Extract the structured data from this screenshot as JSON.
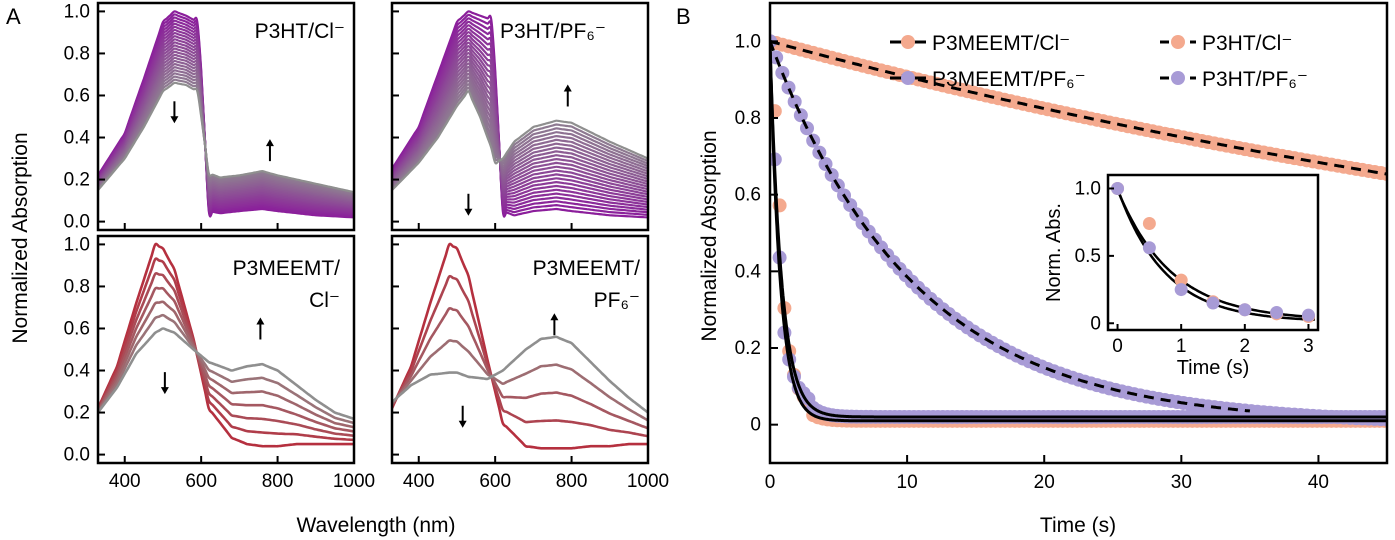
{
  "panel_a_letter": "A",
  "panel_b_letter": "B",
  "panel_a_ylabel": "Normalized Absorption",
  "panel_a_xlabel": "Wavelength (nm)",
  "panel_b_ylabel": "Normalized Absorption",
  "panel_b_xlabel": "Time (s)",
  "colors": {
    "purple": "#8B1E9B",
    "crimson": "#B5303F",
    "grey": "#8F8F8F",
    "salmon": "#F4A98E",
    "lavender": "#A89BD6",
    "black": "#000000"
  },
  "chart_data": [
    {
      "type": "line",
      "panel": "A",
      "label_lines": [
        "P3HT/Cl⁻"
      ],
      "xlim": [
        330,
        1000
      ],
      "ylim": [
        -0.04,
        1.04
      ],
      "x_ticks": [
        400,
        600,
        800,
        1000
      ],
      "y_ticks": [
        0.0,
        0.2,
        0.4,
        0.6,
        0.8,
        1.0
      ],
      "x_ticklabels": [],
      "y_ticklabels": [
        "0.0",
        "0.2",
        "0.4",
        "0.6",
        "0.8",
        "1.0"
      ],
      "series_initial": {
        "x": [
          330,
          400,
          450,
          500,
          530,
          560,
          590,
          600,
          620,
          650,
          700,
          760,
          800,
          900,
          1000
        ],
        "y": [
          0.22,
          0.42,
          0.68,
          0.95,
          1.0,
          0.98,
          0.95,
          0.72,
          0.05,
          0.04,
          0.05,
          0.06,
          0.05,
          0.03,
          0.02
        ]
      },
      "series_final": {
        "x": [
          330,
          400,
          450,
          500,
          530,
          560,
          590,
          600,
          620,
          650,
          700,
          760,
          800,
          900,
          1000
        ],
        "y": [
          0.15,
          0.3,
          0.45,
          0.62,
          0.66,
          0.65,
          0.62,
          0.5,
          0.23,
          0.21,
          0.22,
          0.24,
          0.22,
          0.18,
          0.14
        ]
      },
      "n_curves": 24,
      "arrows": [
        {
          "x": 530,
          "y": 0.52,
          "dir": "down"
        },
        {
          "x": 780,
          "y": 0.34,
          "dir": "up"
        }
      ]
    },
    {
      "type": "line",
      "panel": "A",
      "label_lines": [
        "P3HT/PF₆⁻"
      ],
      "xlim": [
        330,
        1000
      ],
      "ylim": [
        -0.04,
        1.04
      ],
      "x_ticks": [
        400,
        600,
        800,
        1000
      ],
      "y_ticks": [
        0.0,
        0.2,
        0.4,
        0.6,
        0.8,
        1.0
      ],
      "x_ticklabels": [],
      "y_ticklabels": [],
      "series_initial": {
        "x": [
          330,
          400,
          450,
          500,
          530,
          560,
          590,
          600,
          620,
          650,
          700,
          760,
          800,
          900,
          1000
        ],
        "y": [
          0.25,
          0.45,
          0.7,
          0.95,
          1.0,
          0.98,
          0.96,
          0.72,
          0.05,
          0.03,
          0.05,
          0.06,
          0.05,
          0.03,
          0.02
        ]
      },
      "series_final": {
        "x": [
          330,
          400,
          450,
          500,
          530,
          560,
          590,
          600,
          620,
          650,
          700,
          760,
          800,
          900,
          1000
        ],
        "y": [
          0.15,
          0.28,
          0.4,
          0.55,
          0.62,
          0.5,
          0.35,
          0.28,
          0.3,
          0.38,
          0.45,
          0.48,
          0.47,
          0.38,
          0.3
        ]
      },
      "n_curves": 24,
      "arrows": [
        {
          "x": 530,
          "y": 0.08,
          "dir": "down"
        },
        {
          "x": 790,
          "y": 0.6,
          "dir": "up"
        }
      ]
    },
    {
      "type": "line",
      "panel": "A",
      "label_lines": [
        "P3MEEMT/",
        "Cl⁻"
      ],
      "xlim": [
        330,
        1000
      ],
      "ylim": [
        -0.04,
        1.04
      ],
      "x_ticks": [
        400,
        600,
        800,
        1000
      ],
      "y_ticks": [
        0.0,
        0.2,
        0.4,
        0.6,
        0.8,
        1.0
      ],
      "x_ticklabels": [
        "400",
        "600",
        "800",
        "1000"
      ],
      "y_ticklabels": [
        "0.0",
        "0.2",
        "0.4",
        "0.6",
        "0.8",
        "1.0"
      ],
      "series_initial": {
        "x": [
          330,
          380,
          430,
          480,
          500,
          530,
          580,
          620,
          680,
          720,
          760,
          800,
          850,
          900,
          950,
          1000
        ],
        "y": [
          0.22,
          0.42,
          0.72,
          1.0,
          0.98,
          0.88,
          0.55,
          0.22,
          0.08,
          0.05,
          0.04,
          0.04,
          0.05,
          0.05,
          0.05,
          0.05
        ]
      },
      "series_final": {
        "x": [
          330,
          380,
          430,
          480,
          500,
          530,
          580,
          620,
          680,
          720,
          760,
          800,
          850,
          900,
          950,
          1000
        ],
        "y": [
          0.2,
          0.32,
          0.48,
          0.58,
          0.6,
          0.58,
          0.5,
          0.44,
          0.4,
          0.42,
          0.43,
          0.4,
          0.33,
          0.26,
          0.2,
          0.17
        ]
      },
      "n_curves": 7,
      "arrows": [
        {
          "x": 505,
          "y": 0.34,
          "dir": "down"
        },
        {
          "x": 755,
          "y": 0.6,
          "dir": "up"
        }
      ]
    },
    {
      "type": "line",
      "panel": "A",
      "label_lines": [
        "P3MEEMT/",
        "PF₆⁻"
      ],
      "xlim": [
        330,
        1000
      ],
      "ylim": [
        -0.04,
        1.04
      ],
      "x_ticks": [
        400,
        600,
        800,
        1000
      ],
      "y_ticks": [
        0.0,
        0.2,
        0.4,
        0.6,
        0.8,
        1.0
      ],
      "x_ticklabels": [
        "400",
        "600",
        "800",
        "1000"
      ],
      "y_ticklabels": [],
      "series_initial": {
        "x": [
          330,
          380,
          430,
          480,
          500,
          530,
          580,
          620,
          680,
          720,
          760,
          800,
          850,
          900,
          950,
          1000
        ],
        "y": [
          0.22,
          0.42,
          0.72,
          1.0,
          0.98,
          0.85,
          0.45,
          0.15,
          0.04,
          0.03,
          0.03,
          0.03,
          0.04,
          0.04,
          0.05,
          0.05
        ]
      },
      "series_final": {
        "x": [
          330,
          380,
          430,
          480,
          500,
          530,
          580,
          620,
          680,
          720,
          760,
          800,
          850,
          900,
          950,
          1000
        ],
        "y": [
          0.25,
          0.33,
          0.38,
          0.39,
          0.39,
          0.37,
          0.36,
          0.4,
          0.5,
          0.55,
          0.56,
          0.53,
          0.44,
          0.35,
          0.27,
          0.2
        ]
      },
      "n_curves": 5,
      "arrows": [
        {
          "x": 515,
          "y": 0.18,
          "dir": "down"
        },
        {
          "x": 755,
          "y": 0.62,
          "dir": "up"
        }
      ]
    },
    {
      "type": "scatter",
      "panel": "B",
      "xlim": [
        0,
        45
      ],
      "ylim": [
        -0.1,
        1.1
      ],
      "x_ticks": [
        0,
        10,
        20,
        30,
        40
      ],
      "y_ticks": [
        0,
        0.2,
        0.4,
        0.6,
        0.8,
        1.0
      ],
      "x_ticklabels": [
        "0",
        "10",
        "20",
        "30",
        "40"
      ],
      "y_ticklabels": [
        "0",
        "0.2",
        "0.4",
        "0.6",
        "0.8",
        "1.0"
      ],
      "legend_position": "top",
      "series": [
        {
          "name": "P3MEEMT/Cl⁻",
          "marker": "salmon",
          "line": "solid",
          "model": "exp",
          "A": 0.99,
          "tau": 0.75,
          "C": 0.01,
          "x_end": 45,
          "x": [
            0,
            0.5,
            1,
            1.5,
            2,
            2.5,
            3,
            4,
            5,
            6,
            8,
            10,
            15,
            20,
            25,
            30,
            35,
            40,
            45
          ],
          "y": [
            1.0,
            0.74,
            0.32,
            0.16,
            0.1,
            0.07,
            0.05,
            0.03,
            0.02,
            0.015,
            0.01,
            0.008,
            0.006,
            0.005,
            0.005,
            0.004,
            0.004,
            0.004,
            0.004
          ]
        },
        {
          "name": "P3HT/Cl⁻",
          "marker": "salmon",
          "line": "dashed",
          "model": "exp",
          "A": 0.88,
          "tau": 90,
          "C": 0.12,
          "x_end": 45,
          "x": [
            0,
            2,
            4,
            6,
            8,
            10,
            12,
            14,
            16,
            18,
            20,
            22,
            24,
            26,
            28,
            30,
            32,
            34,
            36,
            38,
            40,
            42,
            44,
            45
          ],
          "y": [
            1.0,
            0.98,
            0.96,
            0.94,
            0.92,
            0.9,
            0.88,
            0.86,
            0.85,
            0.83,
            0.81,
            0.79,
            0.78,
            0.76,
            0.75,
            0.73,
            0.72,
            0.71,
            0.69,
            0.68,
            0.67,
            0.66,
            0.64,
            0.64
          ]
        },
        {
          "name": "P3MEEMT/PF₆⁻",
          "marker": "lavender",
          "line": "solid",
          "model": "exp",
          "A": 0.97,
          "tau": 0.85,
          "C": 0.02,
          "x_end": 45,
          "x": [
            0,
            0.5,
            1,
            1.5,
            2,
            2.5,
            3,
            4,
            5,
            6,
            8,
            10,
            15,
            20,
            25,
            30,
            35,
            40,
            45
          ],
          "y": [
            1.0,
            0.56,
            0.25,
            0.15,
            0.1,
            0.08,
            0.06,
            0.04,
            0.035,
            0.03,
            0.025,
            0.02,
            0.015,
            0.01,
            0.01,
            0.008,
            0.006,
            0.005,
            0.005
          ]
        },
        {
          "name": "P3HT/PF₆⁻",
          "marker": "lavender",
          "line": "dashed",
          "model": "exp",
          "A": 1.0,
          "tau": 10.5,
          "C": 0.0,
          "x_end": 35,
          "x": [
            0,
            1,
            2,
            3,
            4,
            5,
            6,
            7,
            8,
            9,
            10,
            12,
            14,
            16,
            18,
            20,
            22,
            24,
            26,
            28,
            30,
            32,
            34,
            36,
            38,
            40,
            42,
            44,
            45
          ],
          "y": [
            1.0,
            0.91,
            0.83,
            0.75,
            0.68,
            0.62,
            0.56,
            0.51,
            0.46,
            0.42,
            0.38,
            0.32,
            0.26,
            0.22,
            0.18,
            0.15,
            0.13,
            0.11,
            0.09,
            0.075,
            0.065,
            0.05,
            0.04,
            0.035,
            0.03,
            0.025,
            0.02,
            0.015,
            0.01
          ]
        }
      ]
    },
    {
      "type": "scatter",
      "panel": "B-inset",
      "xlabel": "Time (s)",
      "ylabel": "Norm. Abs.",
      "xlim": [
        -0.15,
        3.15
      ],
      "ylim": [
        -0.05,
        1.1
      ],
      "x_ticks": [
        0,
        1,
        2,
        3
      ],
      "y_ticks": [
        0,
        0.5,
        1.0
      ],
      "x_ticklabels": [
        "0",
        "1",
        "2",
        "3"
      ],
      "y_ticklabels": [
        "0",
        "0.5",
        "1.0"
      ],
      "series": [
        {
          "name": "P3MEEMT/Cl⁻",
          "marker": "salmon",
          "x": [
            0,
            0.5,
            1,
            1.5,
            2,
            2.5,
            3
          ],
          "y": [
            1.0,
            0.74,
            0.32,
            0.16,
            0.1,
            0.07,
            0.05
          ]
        },
        {
          "name": "P3MEEMT/PF₆⁻",
          "marker": "lavender",
          "x": [
            0,
            0.5,
            1,
            1.5,
            2,
            2.5,
            3
          ],
          "y": [
            1.0,
            0.56,
            0.25,
            0.15,
            0.1,
            0.08,
            0.06
          ]
        }
      ],
      "fits": [
        {
          "A": 0.99,
          "tau": 0.75,
          "C": 0.01
        },
        {
          "A": 0.97,
          "tau": 0.85,
          "C": 0.02
        }
      ]
    }
  ]
}
